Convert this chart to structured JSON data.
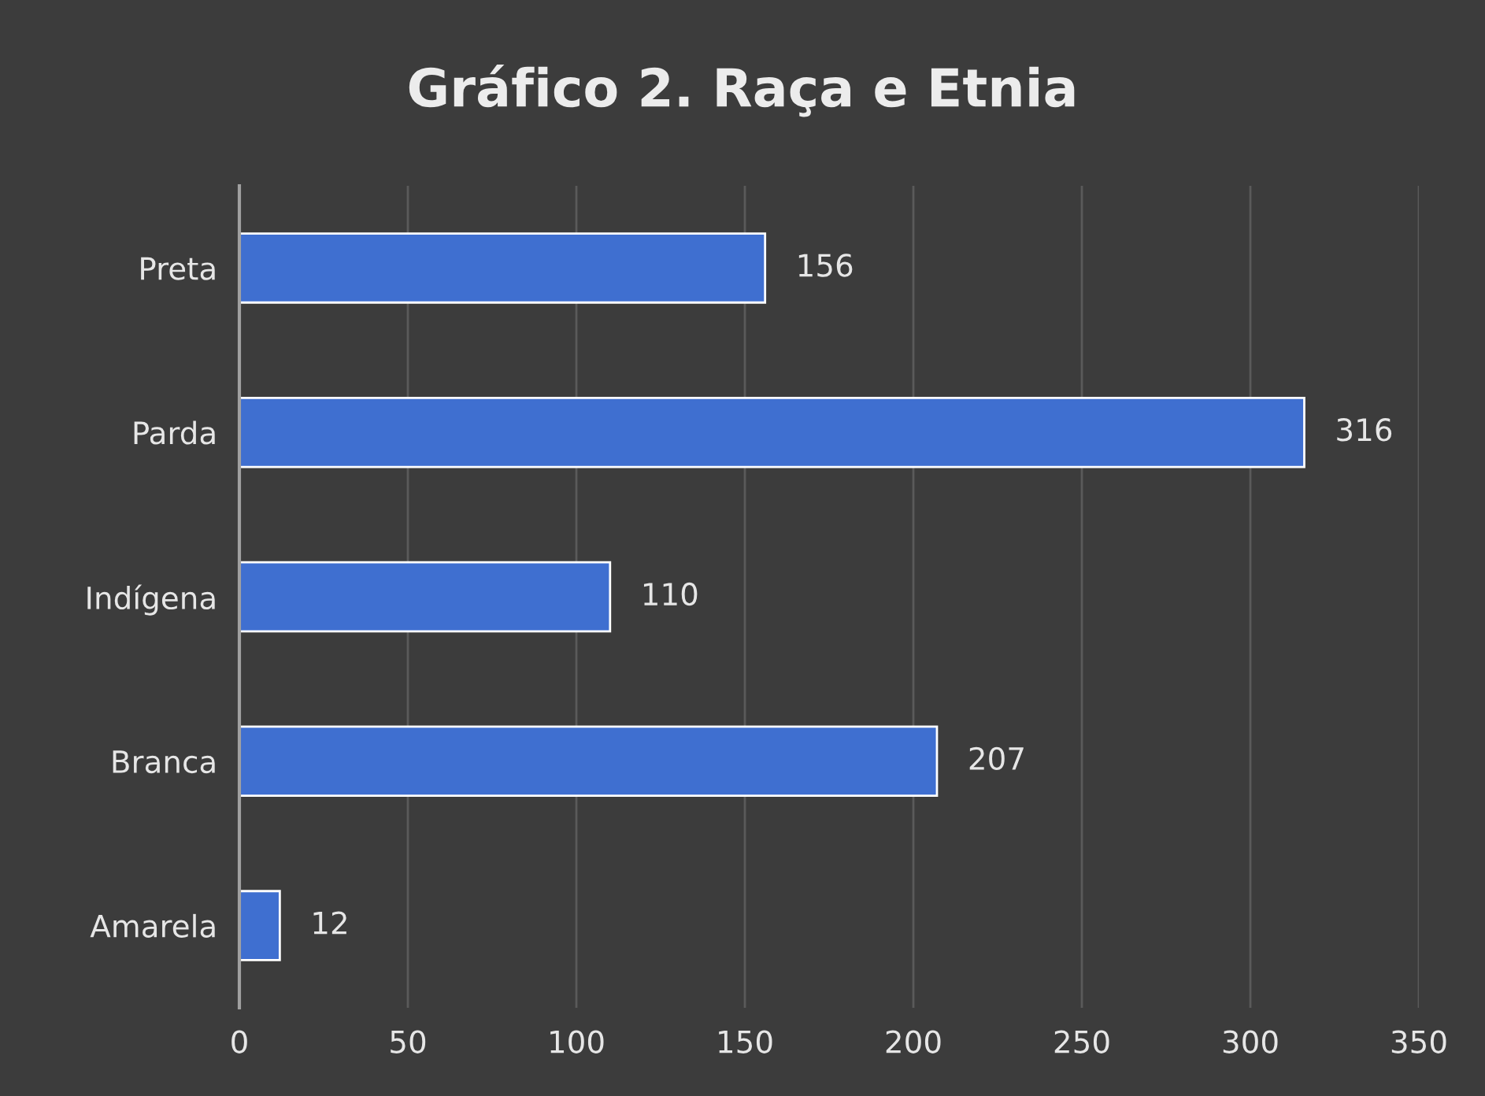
{
  "chart_data": {
    "type": "bar",
    "title": "Gráfico 2. Raça e Etnia",
    "orientation": "horizontal",
    "categories": [
      "Preta",
      "Parda",
      "Indígena",
      "Branca",
      "Amarela"
    ],
    "values": [
      156,
      316,
      110,
      207,
      12
    ],
    "color": "#3f6fd0",
    "xlim": [
      0,
      350
    ],
    "xticks": [
      0,
      50,
      100,
      150,
      200,
      250,
      300,
      350
    ],
    "grid": "x",
    "data_labels": true
  }
}
